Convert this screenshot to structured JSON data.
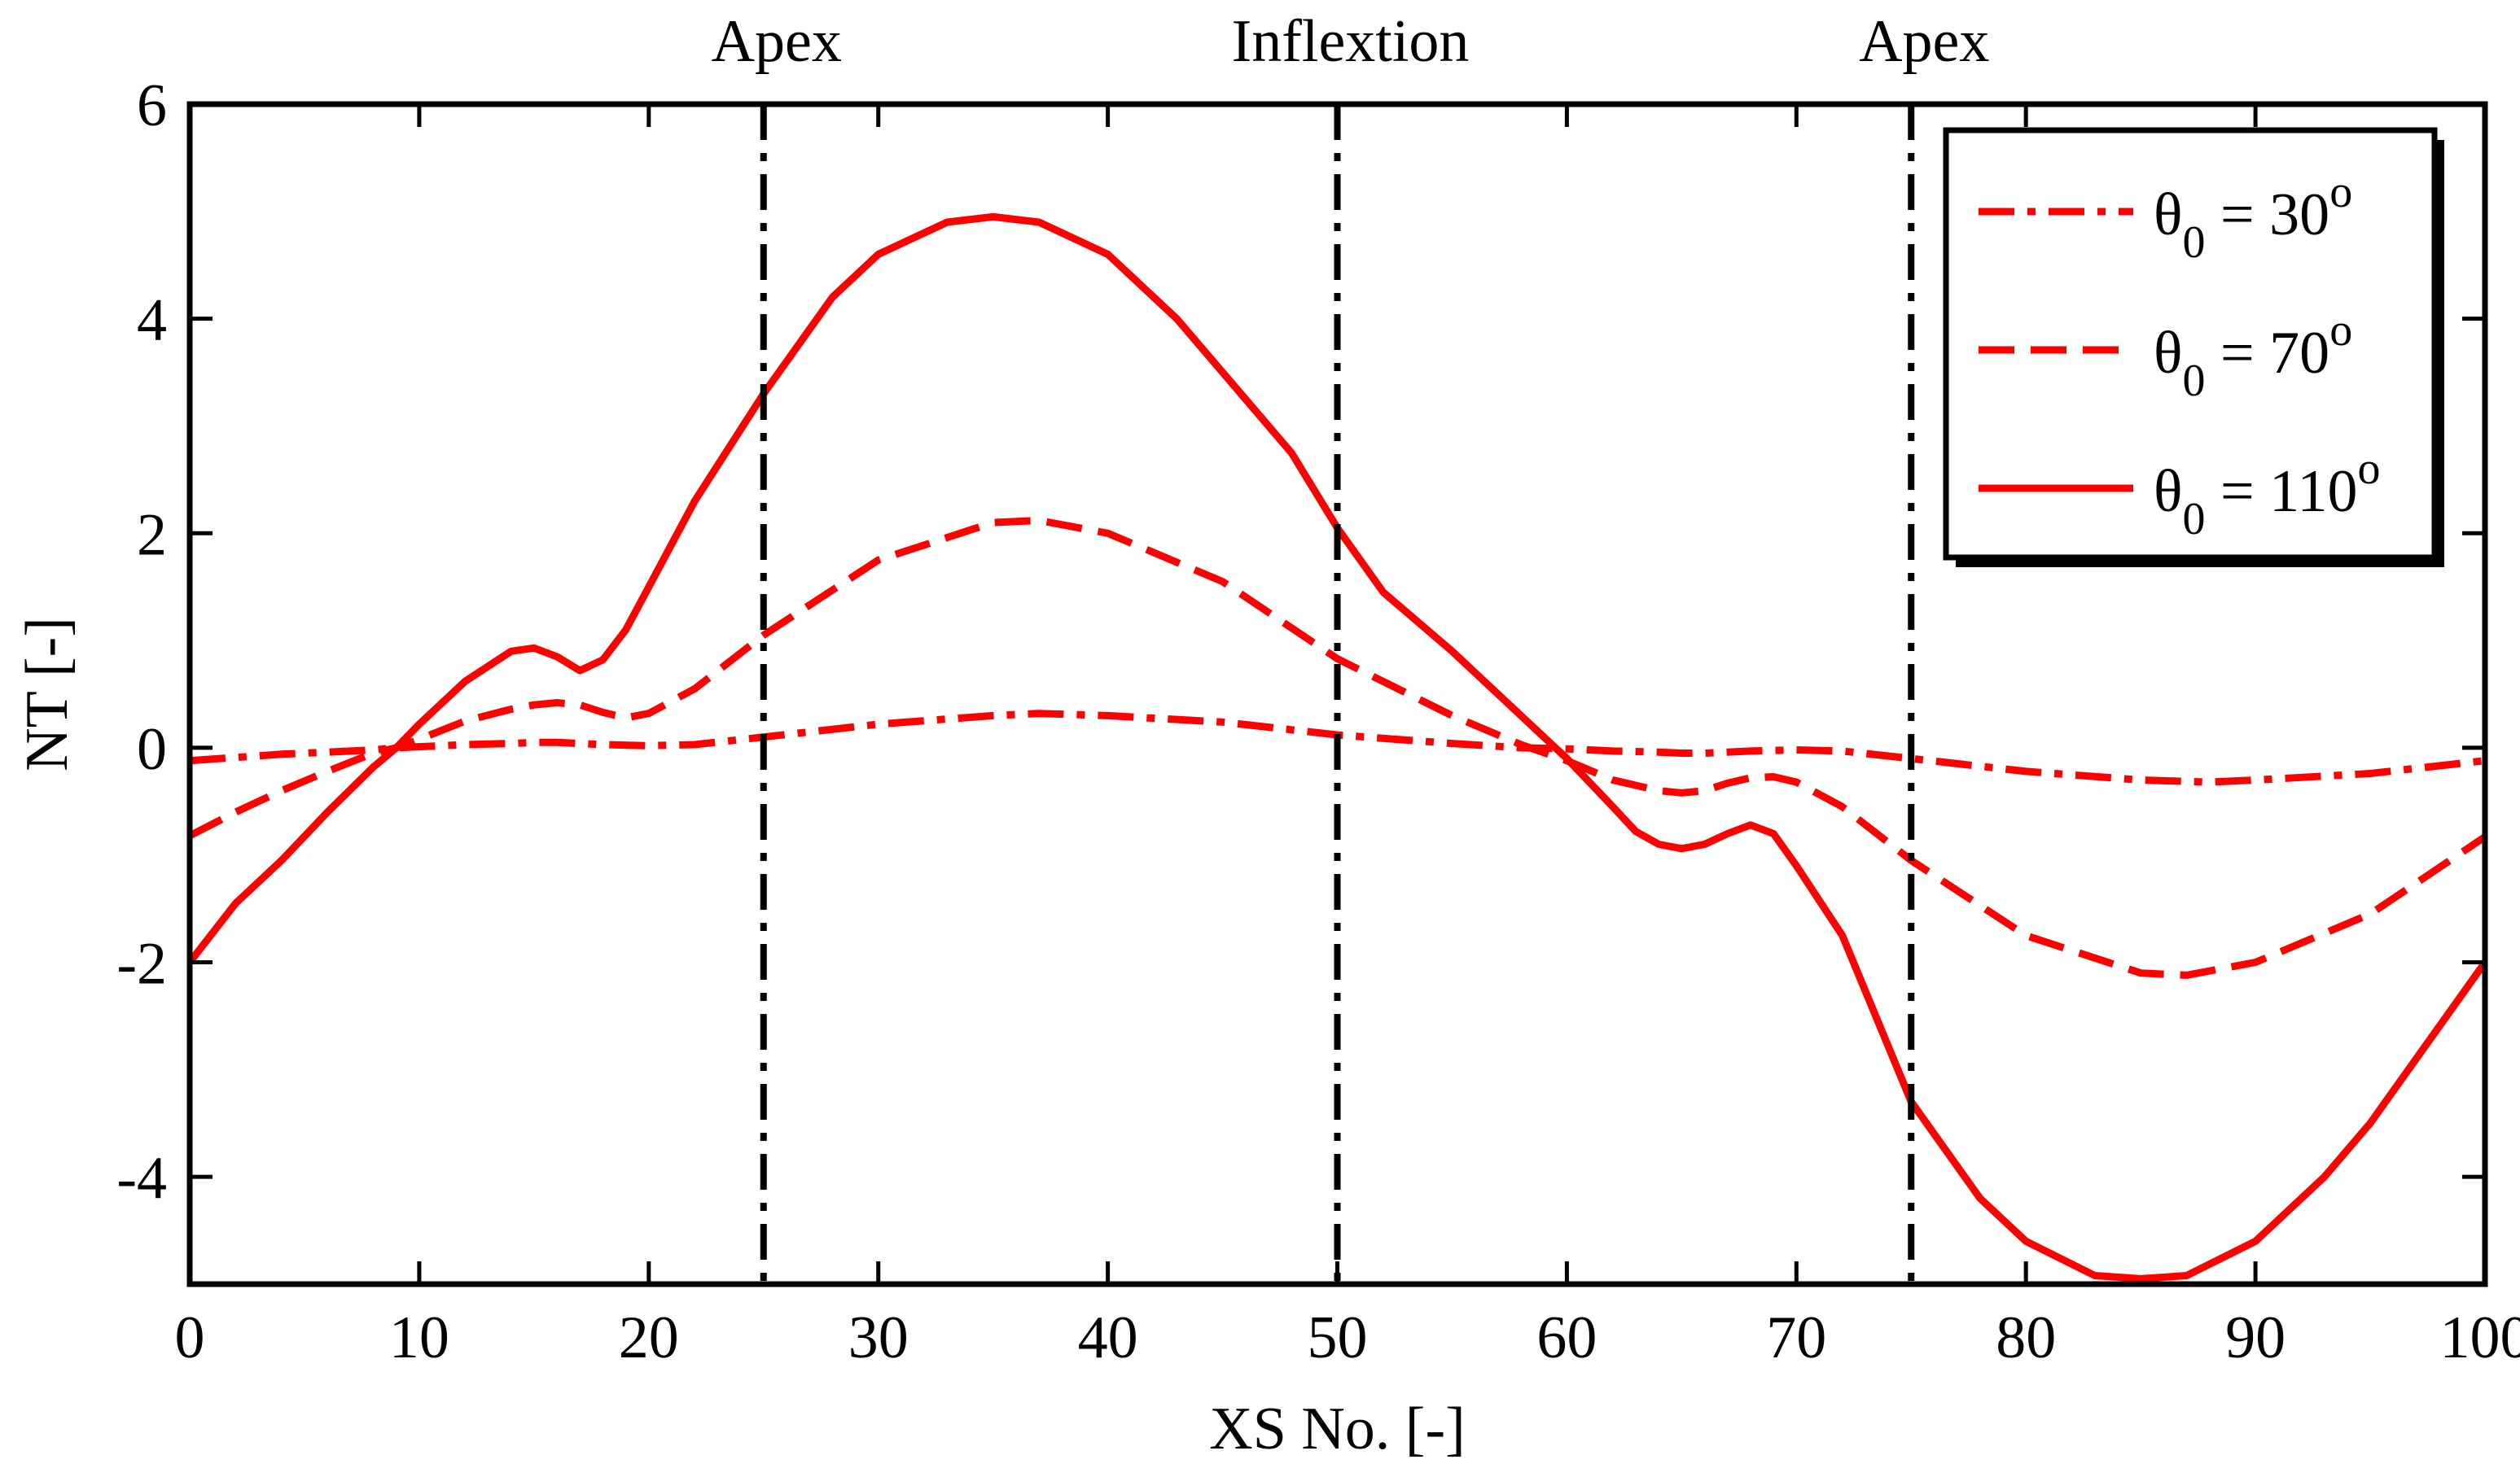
{
  "chart_data": {
    "type": "line",
    "title": "",
    "xlabel": "XS No. [-]",
    "ylabel": "NT [-]",
    "xlim": [
      0,
      100
    ],
    "ylim": [
      -5,
      6
    ],
    "xticks": [
      0,
      10,
      20,
      30,
      40,
      50,
      60,
      70,
      80,
      90,
      100
    ],
    "yticks": [
      -4,
      -2,
      0,
      2,
      4,
      6
    ],
    "grid": false,
    "legend_position": "top-right",
    "series": [
      {
        "name": "θ0 = 30o",
        "legend": {
          "theta": "θ",
          "sub": "0",
          "eq": " = 30",
          "sup": "o"
        },
        "style": "dashdot",
        "color": "#ff0000",
        "x": [
          0,
          2,
          4,
          6,
          8,
          9,
          10,
          12,
          14,
          15,
          16,
          17,
          18,
          20,
          22,
          25,
          30,
          35,
          37,
          40,
          45,
          50,
          55,
          58,
          60,
          62,
          64,
          65,
          66,
          67,
          68,
          70,
          72,
          75,
          80,
          85,
          88,
          90,
          95,
          100
        ],
        "y": [
          -0.12,
          -0.09,
          -0.06,
          -0.04,
          -0.02,
          0,
          0.01,
          0.03,
          0.04,
          0.05,
          0.05,
          0.04,
          0.03,
          0.02,
          0.03,
          0.1,
          0.22,
          0.3,
          0.32,
          0.3,
          0.24,
          0.12,
          0.04,
          0,
          -0.01,
          -0.03,
          -0.04,
          -0.05,
          -0.05,
          -0.04,
          -0.03,
          -0.02,
          -0.03,
          -0.1,
          -0.22,
          -0.3,
          -0.32,
          -0.3,
          -0.24,
          -0.12
        ]
      },
      {
        "name": "θ0 = 70o",
        "legend": {
          "theta": "θ",
          "sub": "0",
          "eq": " = 70",
          "sup": "o"
        },
        "style": "dashed",
        "color": "#ff0000",
        "x": [
          0,
          2,
          4,
          6,
          8,
          9,
          10,
          12,
          14,
          15,
          16,
          17,
          18,
          19,
          20,
          22,
          25,
          30,
          35,
          37,
          40,
          45,
          50,
          55,
          58,
          60,
          62,
          64,
          65,
          66,
          67,
          68,
          69,
          70,
          72,
          75,
          80,
          85,
          87,
          90,
          95,
          100
        ],
        "y": [
          -0.82,
          -0.6,
          -0.4,
          -0.22,
          -0.05,
          0,
          0.08,
          0.25,
          0.36,
          0.4,
          0.42,
          0.4,
          0.33,
          0.28,
          0.32,
          0.55,
          1.05,
          1.75,
          2.1,
          2.12,
          2.0,
          1.55,
          0.83,
          0.3,
          0.03,
          -0.12,
          -0.3,
          -0.4,
          -0.42,
          -0.4,
          -0.33,
          -0.28,
          -0.27,
          -0.32,
          -0.55,
          -1.05,
          -1.75,
          -2.1,
          -2.12,
          -2.0,
          -1.55,
          -0.83
        ]
      },
      {
        "name": "θ0 = 110o",
        "legend": {
          "theta": "θ",
          "sub": "0",
          "eq": " = 110",
          "sup": "o"
        },
        "style": "solid",
        "color": "#ff0000",
        "x": [
          0,
          2,
          4,
          6,
          8,
          9,
          10,
          12,
          14,
          15,
          16,
          17,
          18,
          19,
          20,
          22,
          25,
          28,
          30,
          33,
          35,
          37,
          40,
          43,
          45,
          48,
          50,
          52,
          55,
          58,
          60,
          62,
          63,
          64,
          65,
          66,
          67,
          68,
          69,
          70,
          72,
          75,
          78,
          80,
          83,
          85,
          87,
          90,
          93,
          95,
          98,
          100
        ],
        "y": [
          -2.0,
          -1.45,
          -1.05,
          -0.6,
          -0.18,
          0,
          0.22,
          0.62,
          0.9,
          0.93,
          0.85,
          0.72,
          0.82,
          1.1,
          1.5,
          2.3,
          3.3,
          4.2,
          4.6,
          4.9,
          4.95,
          4.9,
          4.6,
          4.0,
          3.5,
          2.75,
          2.05,
          1.45,
          0.9,
          0.3,
          -0.1,
          -0.55,
          -0.78,
          -0.9,
          -0.94,
          -0.9,
          -0.8,
          -0.72,
          -0.8,
          -1.1,
          -1.75,
          -3.3,
          -4.2,
          -4.6,
          -4.92,
          -4.95,
          -4.92,
          -4.6,
          -4.0,
          -3.5,
          -2.6,
          -2.0
        ]
      }
    ],
    "reference_lines": [
      {
        "x": 25,
        "label": "Apex",
        "style": "dashdot",
        "color": "#000000"
      },
      {
        "x": 50,
        "label": "Inflextion",
        "style": "dashdot",
        "color": "#000000"
      },
      {
        "x": 75,
        "label": "Apex",
        "style": "dashdot",
        "color": "#000000"
      }
    ]
  }
}
